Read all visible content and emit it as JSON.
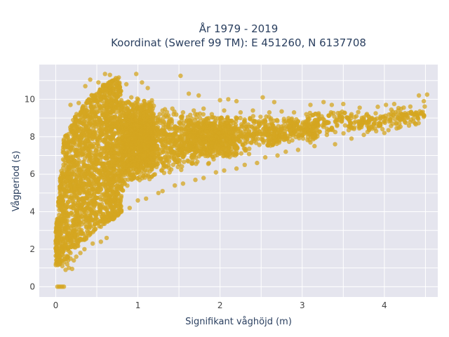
{
  "chart_data": {
    "type": "scatter",
    "title_line1": "År 1979 - 2019",
    "title_line2": "Koordinat (Sweref 99 TM): E 451260, N 6137708",
    "xlabel": "Signifikant våghöjd (m)",
    "ylabel": "Vågperiod (s)",
    "xlim": [
      -0.2,
      4.65
    ],
    "ylim": [
      -0.55,
      11.85
    ],
    "x_ticks": [
      0,
      1,
      2,
      3,
      4
    ],
    "y_ticks": [
      0,
      2,
      4,
      6,
      8,
      10
    ],
    "x_tick_labels": [
      "0",
      "1",
      "2",
      "3",
      "4"
    ],
    "y_tick_labels": [
      "0",
      "2",
      "4",
      "6",
      "8",
      "10"
    ],
    "grid": true,
    "marker_color": "#D4A520",
    "marker_opacity": 0.75,
    "plot_background": "#E5E5EE",
    "lower_envelope": [
      [
        0.0,
        1.1
      ],
      [
        0.1,
        1.3
      ],
      [
        0.2,
        1.8
      ],
      [
        0.3,
        2.3
      ],
      [
        0.5,
        3.0
      ],
      [
        0.8,
        3.9
      ],
      [
        1.0,
        4.5
      ],
      [
        1.5,
        5.4
      ],
      [
        2.0,
        6.1
      ],
      [
        2.5,
        6.8
      ],
      [
        3.0,
        7.3
      ],
      [
        3.5,
        7.8
      ],
      [
        4.0,
        8.1
      ],
      [
        4.5,
        8.4
      ]
    ],
    "upper_envelope": [
      [
        0.0,
        3.0
      ],
      [
        0.1,
        8.0
      ],
      [
        0.3,
        9.6
      ],
      [
        0.5,
        10.5
      ],
      [
        0.7,
        11.2
      ],
      [
        1.0,
        11.3
      ],
      [
        1.5,
        10.2
      ],
      [
        2.0,
        9.8
      ],
      [
        2.5,
        9.6
      ],
      [
        3.0,
        9.6
      ],
      [
        3.5,
        9.7
      ],
      [
        4.0,
        9.6
      ],
      [
        4.5,
        10.2
      ]
    ],
    "points": [
      [
        0.02,
        0.0
      ],
      [
        0.04,
        0.0
      ],
      [
        0.06,
        0.0
      ],
      [
        0.08,
        0.0
      ],
      [
        0.1,
        0.0
      ],
      [
        0.6,
        11.35
      ],
      [
        0.66,
        11.3
      ],
      [
        0.98,
        11.35
      ],
      [
        1.52,
        11.25
      ],
      [
        0.42,
        11.05
      ],
      [
        0.52,
        10.9
      ],
      [
        0.76,
        10.65
      ],
      [
        0.86,
        10.8
      ],
      [
        1.05,
        10.9
      ],
      [
        0.36,
        10.7
      ],
      [
        0.18,
        9.7
      ],
      [
        0.28,
        9.8
      ],
      [
        0.46,
        10.2
      ],
      [
        0.7,
        10.4
      ],
      [
        0.92,
        10.1
      ],
      [
        1.12,
        10.6
      ],
      [
        1.62,
        10.3
      ],
      [
        1.74,
        10.2
      ],
      [
        2.0,
        9.95
      ],
      [
        2.2,
        9.9
      ],
      [
        2.1,
        10.0
      ],
      [
        2.52,
        10.1
      ],
      [
        2.66,
        9.85
      ],
      [
        3.1,
        9.7
      ],
      [
        3.26,
        9.85
      ],
      [
        3.36,
        9.7
      ],
      [
        3.5,
        9.75
      ],
      [
        3.7,
        9.55
      ],
      [
        3.92,
        9.6
      ],
      [
        4.02,
        9.7
      ],
      [
        4.12,
        9.75
      ],
      [
        4.42,
        10.2
      ],
      [
        4.52,
        10.25
      ],
      [
        4.48,
        9.9
      ],
      [
        4.2,
        8.9
      ],
      [
        4.26,
        8.75
      ],
      [
        4.0,
        8.2
      ],
      [
        4.05,
        8.35
      ],
      [
        3.75,
        8.9
      ],
      [
        3.85,
        9.0
      ],
      [
        3.6,
        9.2
      ],
      [
        3.45,
        9.1
      ],
      [
        0.1,
        1.3
      ],
      [
        0.08,
        1.1
      ],
      [
        0.14,
        1.2
      ],
      [
        0.05,
        1.6
      ],
      [
        0.04,
        1.9
      ],
      [
        0.06,
        2.4
      ],
      [
        0.03,
        2.8
      ],
      [
        0.05,
        3.2
      ],
      [
        0.06,
        3.6
      ],
      [
        0.07,
        4.2
      ],
      [
        0.08,
        4.8
      ],
      [
        0.09,
        5.5
      ],
      [
        0.11,
        6.0
      ],
      [
        0.12,
        6.6
      ],
      [
        0.13,
        7.0
      ],
      [
        0.15,
        7.5
      ],
      [
        0.16,
        7.8
      ],
      [
        0.14,
        8.0
      ],
      [
        0.2,
        8.6
      ],
      [
        0.22,
        7.7
      ],
      [
        0.25,
        8.5
      ],
      [
        0.3,
        8.9
      ],
      [
        0.32,
        9.3
      ],
      [
        0.38,
        9.4
      ],
      [
        0.48,
        9.5
      ],
      [
        0.55,
        9.6
      ],
      [
        0.62,
        9.7
      ],
      [
        0.74,
        9.9
      ],
      [
        0.82,
        9.8
      ],
      [
        0.95,
        9.6
      ],
      [
        1.05,
        9.7
      ],
      [
        1.18,
        9.5
      ],
      [
        1.3,
        9.4
      ],
      [
        1.42,
        9.5
      ],
      [
        1.55,
        9.3
      ],
      [
        1.68,
        9.4
      ],
      [
        1.8,
        9.5
      ],
      [
        1.9,
        9.2
      ],
      [
        2.05,
        9.4
      ],
      [
        2.25,
        9.3
      ],
      [
        2.4,
        9.4
      ],
      [
        2.6,
        9.3
      ],
      [
        2.75,
        9.35
      ],
      [
        2.9,
        9.3
      ],
      [
        3.05,
        9.2
      ],
      [
        3.2,
        9.25
      ],
      [
        3.35,
        9.3
      ],
      [
        3.55,
        9.0
      ],
      [
        3.65,
        8.8
      ],
      [
        3.8,
        8.8
      ],
      [
        3.95,
        8.7
      ],
      [
        4.1,
        8.7
      ],
      [
        4.3,
        8.6
      ],
      [
        3.3,
        8.1
      ],
      [
        3.1,
        7.7
      ],
      [
        2.8,
        7.2
      ],
      [
        2.55,
        6.9
      ],
      [
        2.3,
        6.5
      ],
      [
        2.05,
        6.2
      ],
      [
        1.8,
        5.8
      ],
      [
        1.55,
        5.5
      ],
      [
        1.3,
        5.1
      ],
      [
        1.1,
        4.7
      ],
      [
        0.9,
        4.2
      ],
      [
        0.7,
        3.6
      ],
      [
        0.55,
        3.2
      ],
      [
        0.42,
        2.8
      ],
      [
        0.32,
        2.5
      ],
      [
        0.24,
        2.1
      ],
      [
        0.18,
        1.8
      ],
      [
        0.55,
        2.4
      ],
      [
        0.45,
        2.3
      ],
      [
        0.35,
        2.0
      ],
      [
        0.62,
        2.6
      ],
      [
        0.3,
        1.8
      ],
      [
        0.25,
        1.6
      ],
      [
        0.2,
        0.95
      ],
      [
        0.16,
        1.0
      ],
      [
        0.12,
        0.9
      ],
      [
        0.22,
        1.4
      ],
      [
        0.18,
        1.5
      ],
      [
        0.15,
        1.4
      ],
      [
        3.4,
        7.6
      ],
      [
        3.6,
        7.9
      ],
      [
        3.75,
        8.1
      ],
      [
        3.9,
        8.3
      ],
      [
        4.15,
        8.45
      ],
      [
        2.2,
        6.3
      ],
      [
        2.45,
        6.6
      ],
      [
        2.7,
        7.0
      ],
      [
        2.95,
        7.3
      ],
      [
        3.15,
        7.5
      ],
      [
        1.7,
        5.7
      ],
      [
        1.95,
        6.1
      ],
      [
        1.45,
        5.4
      ],
      [
        1.25,
        5.0
      ],
      [
        1.0,
        4.6
      ],
      [
        0.8,
        4.0
      ]
    ]
  }
}
